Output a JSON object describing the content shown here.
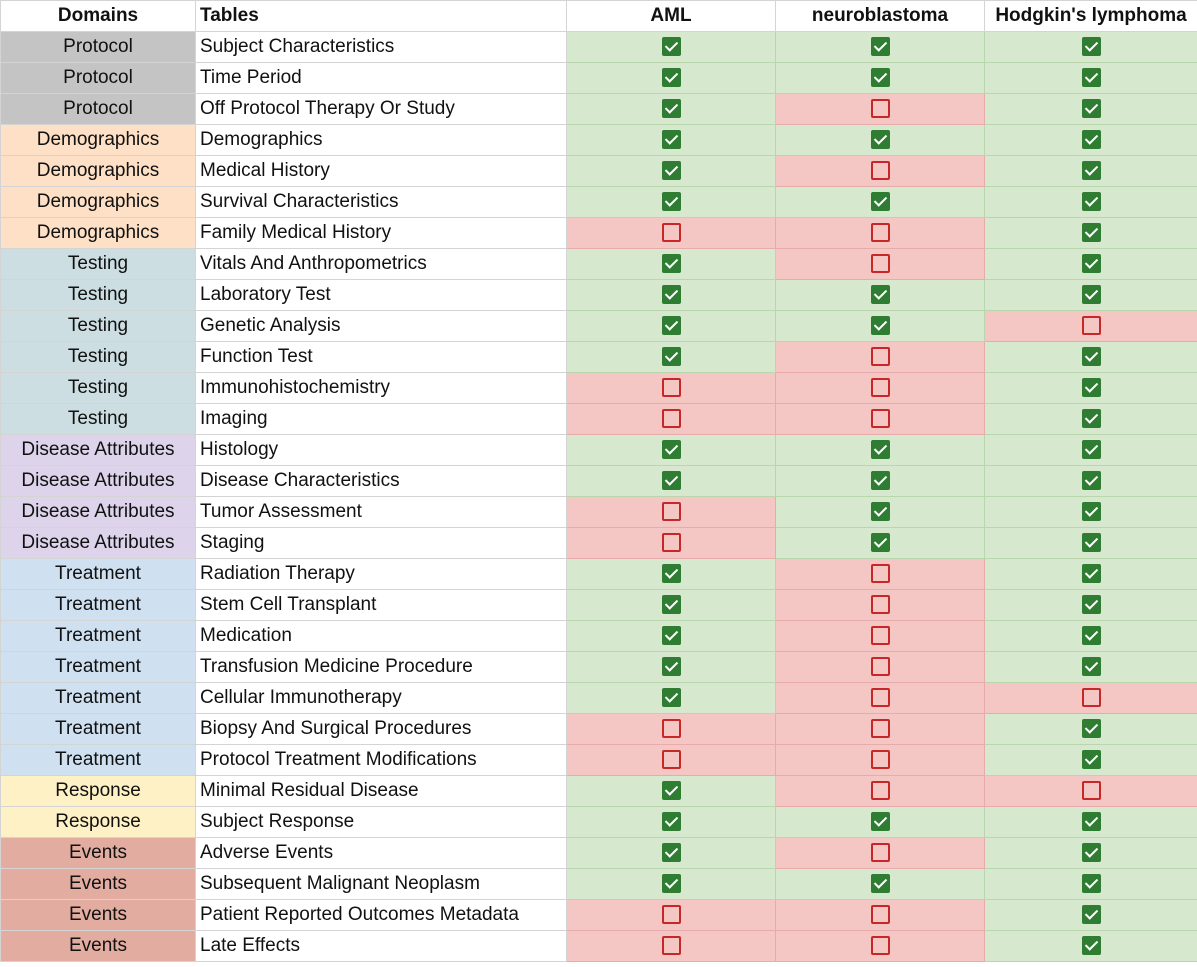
{
  "headers": {
    "domains": "Domains",
    "tables": "Tables",
    "aml": "AML",
    "neuroblastoma": "neuroblastoma",
    "hodgkins": "Hodgkin's lymphoma"
  },
  "domain_colors": {
    "Protocol": "#c4c4c4",
    "Demographics": "#fde0c5",
    "Testing": "#cddee2",
    "Disease Attributes": "#ddd3ea",
    "Treatment": "#cfe0f1",
    "Response": "#fff1c6",
    "Events": "#e2aca1"
  },
  "status_colors": {
    "yes_bg": "#d6e9cf",
    "no_bg": "#f4c7c5",
    "check_icon": "#2e7d32",
    "empty_icon": "#c62828"
  },
  "rows": [
    {
      "domain": "Protocol",
      "table": "Subject Characteristics",
      "aml": true,
      "neuroblastoma": true,
      "hodgkins": true
    },
    {
      "domain": "Protocol",
      "table": "Time Period",
      "aml": true,
      "neuroblastoma": true,
      "hodgkins": true
    },
    {
      "domain": "Protocol",
      "table": "Off Protocol Therapy Or Study",
      "aml": true,
      "neuroblastoma": false,
      "hodgkins": true
    },
    {
      "domain": "Demographics",
      "table": "Demographics",
      "aml": true,
      "neuroblastoma": true,
      "hodgkins": true
    },
    {
      "domain": "Demographics",
      "table": "Medical History",
      "aml": true,
      "neuroblastoma": false,
      "hodgkins": true
    },
    {
      "domain": "Demographics",
      "table": "Survival Characteristics",
      "aml": true,
      "neuroblastoma": true,
      "hodgkins": true
    },
    {
      "domain": "Demographics",
      "table": "Family Medical History",
      "aml": false,
      "neuroblastoma": false,
      "hodgkins": true
    },
    {
      "domain": "Testing",
      "table": "Vitals And Anthropometrics",
      "aml": true,
      "neuroblastoma": false,
      "hodgkins": true
    },
    {
      "domain": "Testing",
      "table": "Laboratory Test",
      "aml": true,
      "neuroblastoma": true,
      "hodgkins": true
    },
    {
      "domain": "Testing",
      "table": "Genetic Analysis",
      "aml": true,
      "neuroblastoma": true,
      "hodgkins": false
    },
    {
      "domain": "Testing",
      "table": "Function Test",
      "aml": true,
      "neuroblastoma": false,
      "hodgkins": true
    },
    {
      "domain": "Testing",
      "table": "Immunohistochemistry",
      "aml": false,
      "neuroblastoma": false,
      "hodgkins": true
    },
    {
      "domain": "Testing",
      "table": "Imaging",
      "aml": false,
      "neuroblastoma": false,
      "hodgkins": true
    },
    {
      "domain": "Disease Attributes",
      "table": "Histology",
      "aml": true,
      "neuroblastoma": true,
      "hodgkins": true
    },
    {
      "domain": "Disease Attributes",
      "table": "Disease Characteristics",
      "aml": true,
      "neuroblastoma": true,
      "hodgkins": true
    },
    {
      "domain": "Disease Attributes",
      "table": "Tumor Assessment",
      "aml": false,
      "neuroblastoma": true,
      "hodgkins": true
    },
    {
      "domain": "Disease Attributes",
      "table": "Staging",
      "aml": false,
      "neuroblastoma": true,
      "hodgkins": true
    },
    {
      "domain": "Treatment",
      "table": "Radiation Therapy",
      "aml": true,
      "neuroblastoma": false,
      "hodgkins": true
    },
    {
      "domain": "Treatment",
      "table": "Stem Cell Transplant",
      "aml": true,
      "neuroblastoma": false,
      "hodgkins": true
    },
    {
      "domain": "Treatment",
      "table": "Medication",
      "aml": true,
      "neuroblastoma": false,
      "hodgkins": true
    },
    {
      "domain": "Treatment",
      "table": "Transfusion Medicine Procedure",
      "aml": true,
      "neuroblastoma": false,
      "hodgkins": true
    },
    {
      "domain": "Treatment",
      "table": "Cellular Immunotherapy",
      "aml": true,
      "neuroblastoma": false,
      "hodgkins": false
    },
    {
      "domain": "Treatment",
      "table": "Biopsy And Surgical Procedures",
      "aml": false,
      "neuroblastoma": false,
      "hodgkins": true
    },
    {
      "domain": "Treatment",
      "table": "Protocol Treatment Modifications",
      "aml": false,
      "neuroblastoma": false,
      "hodgkins": true
    },
    {
      "domain": "Response",
      "table": "Minimal Residual Disease",
      "aml": true,
      "neuroblastoma": false,
      "hodgkins": false
    },
    {
      "domain": "Response",
      "table": "Subject Response",
      "aml": true,
      "neuroblastoma": true,
      "hodgkins": true
    },
    {
      "domain": "Events",
      "table": "Adverse Events",
      "aml": true,
      "neuroblastoma": false,
      "hodgkins": true
    },
    {
      "domain": "Events",
      "table": "Subsequent Malignant Neoplasm",
      "aml": true,
      "neuroblastoma": true,
      "hodgkins": true
    },
    {
      "domain": "Events",
      "table": "Patient Reported Outcomes Metadata",
      "aml": false,
      "neuroblastoma": false,
      "hodgkins": true
    },
    {
      "domain": "Events",
      "table": "Late Effects",
      "aml": false,
      "neuroblastoma": false,
      "hodgkins": true
    }
  ]
}
